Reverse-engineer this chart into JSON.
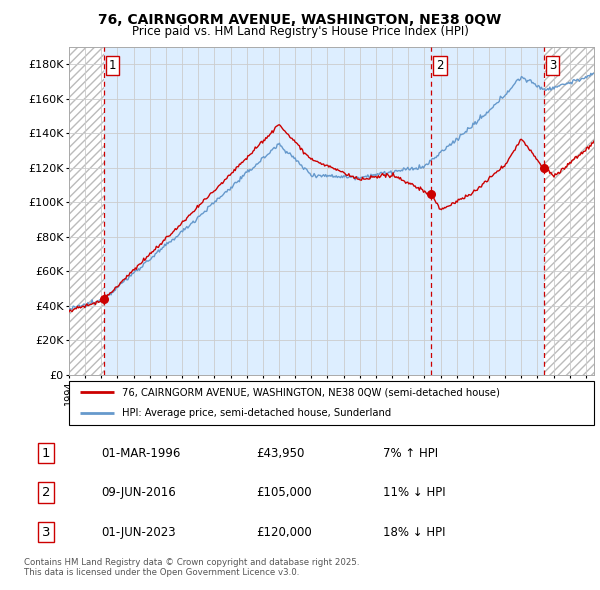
{
  "title1": "76, CAIRNGORM AVENUE, WASHINGTON, NE38 0QW",
  "title2": "Price paid vs. HM Land Registry's House Price Index (HPI)",
  "ylabel_ticks": [
    "£0",
    "£20K",
    "£40K",
    "£60K",
    "£80K",
    "£100K",
    "£120K",
    "£140K",
    "£160K",
    "£180K"
  ],
  "ytick_vals": [
    0,
    20000,
    40000,
    60000,
    80000,
    100000,
    120000,
    140000,
    160000,
    180000
  ],
  "ylim": [
    0,
    190000
  ],
  "xlim_start": 1994.0,
  "xlim_end": 2026.5,
  "sale1_x": 1996.17,
  "sale1_y": 43950,
  "sale2_x": 2016.44,
  "sale2_y": 105000,
  "sale3_x": 2023.42,
  "sale3_y": 120000,
  "sale1_date": "01-MAR-1996",
  "sale1_price": "£43,950",
  "sale1_hpi": "7% ↑ HPI",
  "sale2_date": "09-JUN-2016",
  "sale2_price": "£105,000",
  "sale2_hpi": "11% ↓ HPI",
  "sale3_date": "01-JUN-2023",
  "sale3_price": "£120,000",
  "sale3_hpi": "18% ↓ HPI",
  "legend_line1": "76, CAIRNGORM AVENUE, WASHINGTON, NE38 0QW (semi-detached house)",
  "legend_line2": "HPI: Average price, semi-detached house, Sunderland",
  "footnote1": "Contains HM Land Registry data © Crown copyright and database right 2025.",
  "footnote2": "This data is licensed under the Open Government Licence v3.0.",
  "line_color_red": "#cc0000",
  "line_color_blue": "#6699cc",
  "hatch_color": "#bbbbbb",
  "grid_color": "#cccccc",
  "bg_color": "#ddeeff",
  "dashed_line_color": "#cc0000"
}
